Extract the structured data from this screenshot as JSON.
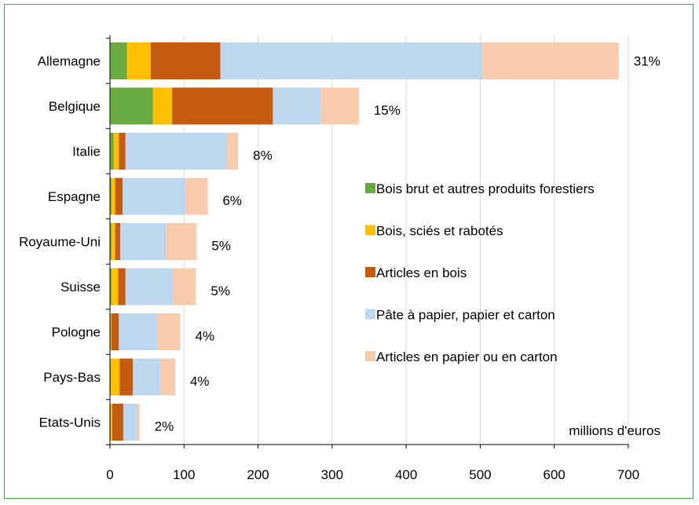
{
  "chart_data": {
    "type": "bar",
    "orientation": "horizontal",
    "stacked": true,
    "title": "",
    "unit_label": "millions d'euros",
    "categories": [
      "Allemagne",
      "Belgique",
      "Italie",
      "Espagne",
      "Royaume-Uni",
      "Suisse",
      "Pologne",
      "Pays-Bas",
      "Etats-Unis"
    ],
    "share_labels": [
      "31%",
      "15%",
      "8%",
      "6%",
      "5%",
      "5%",
      "4%",
      "4%",
      "2%"
    ],
    "series": [
      {
        "name": "Bois brut et autres produits forestiers",
        "color": "#6aaa44",
        "values": [
          23,
          58,
          5,
          2,
          2,
          2,
          1,
          1,
          1
        ]
      },
      {
        "name": "Bois, sciés et rabotés",
        "color": "#ffc000",
        "values": [
          32,
          26,
          7,
          5,
          5,
          9,
          1,
          12,
          2
        ]
      },
      {
        "name": "Articles en bois",
        "color": "#c55a11",
        "values": [
          94,
          136,
          9,
          10,
          7,
          10,
          10,
          18,
          15
        ]
      },
      {
        "name": "Pâte à papier, papier et carton",
        "color": "#bdd7ee",
        "values": [
          354,
          65,
          137,
          85,
          62,
          64,
          52,
          37,
          19
        ]
      },
      {
        "name": "Articles en papier ou en carton",
        "color": "#f8cbad",
        "values": [
          184,
          51,
          15,
          30,
          41,
          31,
          31,
          20,
          3
        ]
      }
    ],
    "x_ticks": [
      "0",
      "100",
      "200",
      "300",
      "400",
      "500",
      "600",
      "700"
    ],
    "xlim": [
      0,
      700
    ],
    "grid": true,
    "legend_position": "inside-right"
  }
}
